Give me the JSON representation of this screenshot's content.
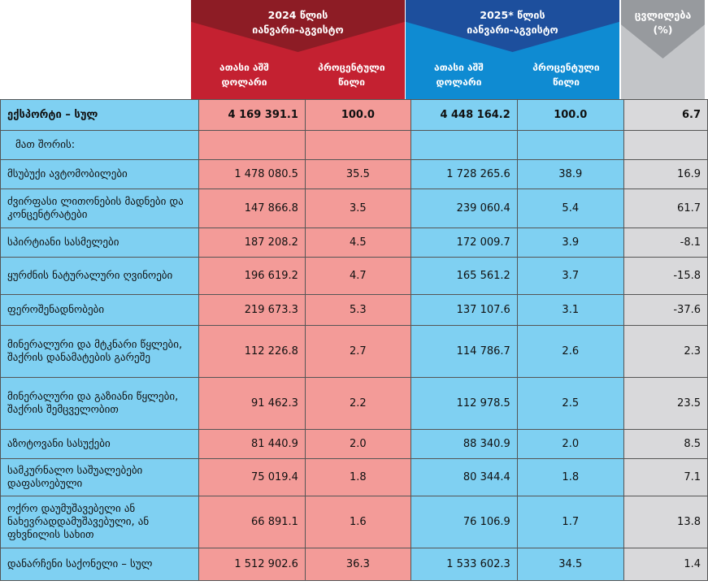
{
  "header": {
    "y2024_title": "2024 წლის\nიანვარი-აგვისტო",
    "y2025_title": "2025* წლის\nიანვარი-აგვისტო",
    "change_title": "ცვლილება\n(%)",
    "col_value": "ათასი აშშ\nდოლარი",
    "col_share": "პროცენტული\nწილი"
  },
  "rows": [
    {
      "label": "ექსპორტი – სულ",
      "v2024": "4 169 391.1",
      "p2024": "100.0",
      "v2025": "4 448 164.2",
      "p2025": "100.0",
      "chg": "6.7"
    },
    {
      "label": "მათ შორის:",
      "v2024": "",
      "p2024": "",
      "v2025": "",
      "p2025": "",
      "chg": ""
    },
    {
      "label": "მსუბუქი ავტომობილები",
      "v2024": "1 478 080.5",
      "p2024": "35.5",
      "v2025": "1 728 265.6",
      "p2025": "38.9",
      "chg": "16.9"
    },
    {
      "label": "ძვირფასი ლითონების მადნები და კონცენტრატები",
      "v2024": "147 866.8",
      "p2024": "3.5",
      "v2025": "239 060.4",
      "p2025": "5.4",
      "chg": "61.7"
    },
    {
      "label": "სპირტიანი სასმელები",
      "v2024": "187 208.2",
      "p2024": "4.5",
      "v2025": "172 009.7",
      "p2025": "3.9",
      "chg": "-8.1"
    },
    {
      "label": "ყურძნის ნატურალური ღვინოები",
      "v2024": "196 619.2",
      "p2024": "4.7",
      "v2025": "165 561.2",
      "p2025": "3.7",
      "chg": "-15.8"
    },
    {
      "label": "ფეროშენადნობები",
      "v2024": "219 673.3",
      "p2024": "5.3",
      "v2025": "137 107.6",
      "p2025": "3.1",
      "chg": "-37.6"
    },
    {
      "label": "მინერალური და მტკნარი წყლები, შაქრის დანამატების გარეშე",
      "v2024": "112 226.8",
      "p2024": "2.7",
      "v2025": "114 786.7",
      "p2025": "2.6",
      "chg": "2.3"
    },
    {
      "label": "მინერალური და გაზიანი წყლები, შაქრის შემცველობით",
      "v2024": "91 462.3",
      "p2024": "2.2",
      "v2025": "112 978.5",
      "p2025": "2.5",
      "chg": "23.5"
    },
    {
      "label": "აზოტოვანი სასუქები",
      "v2024": "81 440.9",
      "p2024": "2.0",
      "v2025": "88 340.9",
      "p2025": "2.0",
      "chg": "8.5"
    },
    {
      "label": "სამკურნალო საშუალებები დაფასოებული",
      "v2024": "75 019.4",
      "p2024": "1.8",
      "v2025": "80 344.4",
      "p2025": "1.8",
      "chg": "7.1"
    },
    {
      "label": "ოქრო დაუმუშავებელი ან ნახევრადდამუშავებული, ან ფხვნილის სახით",
      "v2024": "66 891.1",
      "p2024": "1.6",
      "v2025": "76 106.9",
      "p2025": "1.7",
      "chg": "13.8"
    },
    {
      "label": "დანარჩენი საქონელი – სულ",
      "v2024": "1 512 902.6",
      "p2024": "36.3",
      "v2025": "1 533 602.3",
      "p2025": "34.5",
      "chg": "1.4"
    }
  ]
}
